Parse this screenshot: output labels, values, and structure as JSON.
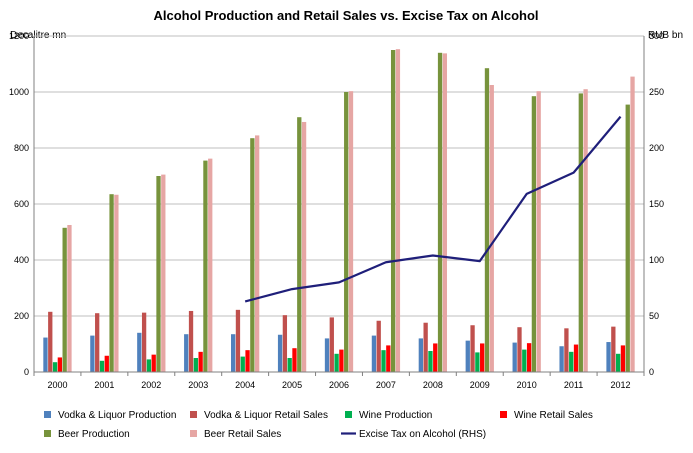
{
  "chart_data": {
    "type": "bar",
    "title": "Alcohol Production and Retail Sales vs. Excise Tax on Alcohol",
    "y_left_label": "Decalitre mn",
    "y_right_label": "RUB bn",
    "y_left_range": [
      0,
      1200
    ],
    "y_left_ticks": [
      "0",
      "200",
      "400",
      "600",
      "800",
      "1000",
      "1200"
    ],
    "y_right_range": [
      0,
      300
    ],
    "y_right_ticks": [
      "0",
      "50",
      "100",
      "150",
      "200",
      "250",
      "300"
    ],
    "grid": true,
    "legend_position": "bottom",
    "categories": [
      "2000",
      "2001",
      "2002",
      "2003",
      "2004",
      "2005",
      "2006",
      "2007",
      "2008",
      "2009",
      "2010",
      "2011",
      "2012"
    ],
    "bar_series": [
      {
        "name": "Vodka & Liquor Production",
        "color": "#4F81BD",
        "values": [
          123,
          130,
          140,
          135,
          135,
          133,
          120,
          130,
          120,
          112,
          105,
          92,
          107
        ]
      },
      {
        "name": "Vodka & Liquor Retail Sales",
        "color": "#C0504D",
        "values": [
          215,
          210,
          212,
          218,
          222,
          203,
          195,
          183,
          176,
          167,
          160,
          156,
          162
        ]
      },
      {
        "name": "Wine Production",
        "color": "#00B050",
        "values": [
          35,
          40,
          45,
          50,
          55,
          50,
          65,
          78,
          75,
          70,
          80,
          72,
          65
        ]
      },
      {
        "name": "Wine Retail Sales",
        "color": "#FF0000",
        "values": [
          52,
          58,
          62,
          72,
          78,
          85,
          80,
          95,
          102,
          102,
          103,
          98,
          95
        ]
      },
      {
        "name": "Beer Production",
        "color": "#77933C",
        "values": [
          515,
          635,
          700,
          755,
          835,
          910,
          1000,
          1150,
          1140,
          1085,
          985,
          995,
          955
        ]
      },
      {
        "name": "Beer Retail Sales",
        "color": "#E6A6A4",
        "values": [
          525,
          633,
          705,
          762,
          845,
          893,
          1003,
          1153,
          1138,
          1025,
          1003,
          1010,
          1055
        ]
      }
    ],
    "line_series": {
      "name": "Excise Tax on Alcohol (RHS)",
      "color": "#1F1F7A",
      "axis": "right",
      "points": [
        {
          "x": "2004",
          "y": 63
        },
        {
          "x": "2005",
          "y": 74
        },
        {
          "x": "2006",
          "y": 80
        },
        {
          "x": "2007",
          "y": 98
        },
        {
          "x": "2008",
          "y": 104
        },
        {
          "x": "2009",
          "y": 99
        },
        {
          "x": "2010",
          "y": 159
        },
        {
          "x": "2011",
          "y": 178
        },
        {
          "x": "2012",
          "y": 228
        }
      ]
    }
  }
}
